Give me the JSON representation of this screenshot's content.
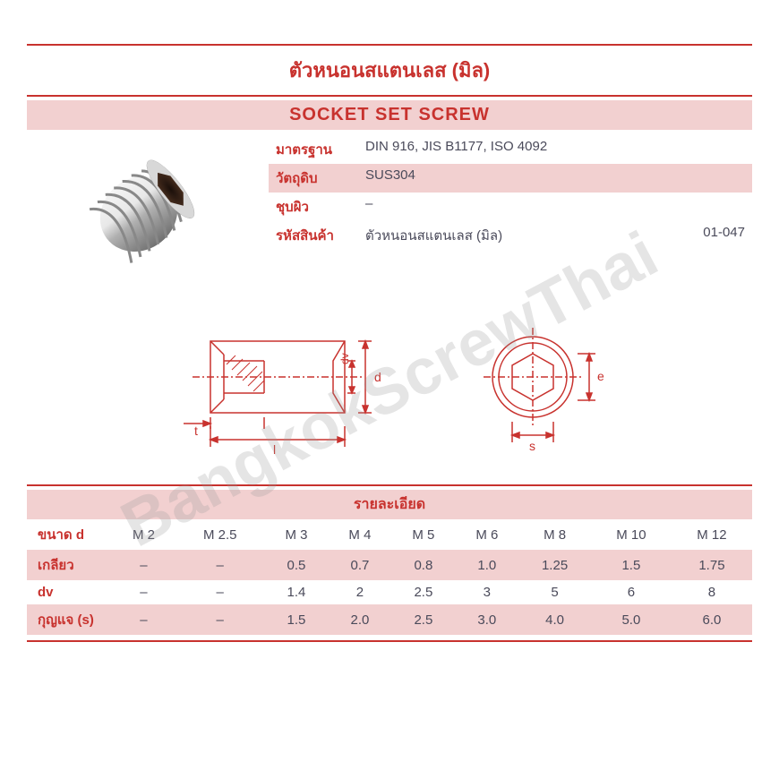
{
  "header": {
    "title_thai": "ตัวหนอนสแตนเลส (มิล)",
    "title_en": "SOCKET SET SCREW"
  },
  "colors": {
    "accent": "#c8322e",
    "pink_bg": "#f2d0d0",
    "text_dark": "#4a4a5a",
    "white": "#ffffff",
    "watermark": "rgba(150,150,150,0.25)"
  },
  "specs": {
    "rows": [
      {
        "label": "มาตรฐาน",
        "value": "DIN 916, JIS B1177, ISO 4092",
        "pink": false
      },
      {
        "label": "วัตถุดิบ",
        "value": "SUS304",
        "pink": true
      },
      {
        "label": "ชุบผิว",
        "value": "–",
        "pink": false
      }
    ],
    "code_row": {
      "label": "รหัสสินค้า",
      "desc": "ตัวหนอนสแตนเลส (มิล)",
      "code": "01-047",
      "pink": true
    }
  },
  "diagram_labels": {
    "side": {
      "d": "d",
      "dv": "dv",
      "t": "t",
      "l": "l"
    },
    "front": {
      "e": "e",
      "s": "s"
    }
  },
  "details": {
    "title": "รายละเอียด",
    "columns": [
      "M 2",
      "M 2.5",
      "M 3",
      "M 4",
      "M 5",
      "M 6",
      "M 8",
      "M 10",
      "M 12"
    ],
    "rows": [
      {
        "label": "ขนาด d",
        "cells": [
          "M 2",
          "M 2.5",
          "M 3",
          "M 4",
          "M 5",
          "M 6",
          "M 8",
          "M 10",
          "M 12"
        ],
        "pink": false
      },
      {
        "label": "เกลียว",
        "cells": [
          "–",
          "–",
          "0.5",
          "0.7",
          "0.8",
          "1.0",
          "1.25",
          "1.5",
          "1.75"
        ],
        "pink": true
      },
      {
        "label": "dv",
        "cells": [
          "–",
          "–",
          "1.4",
          "2",
          "2.5",
          "3",
          "5",
          "6",
          "8"
        ],
        "pink": false
      },
      {
        "label": "กุญแจ (s)",
        "cells": [
          "–",
          "–",
          "1.5",
          "2.0",
          "2.5",
          "3.0",
          "4.0",
          "5.0",
          "6.0"
        ],
        "pink": true
      }
    ]
  },
  "watermark": "BangkokScrewThai"
}
